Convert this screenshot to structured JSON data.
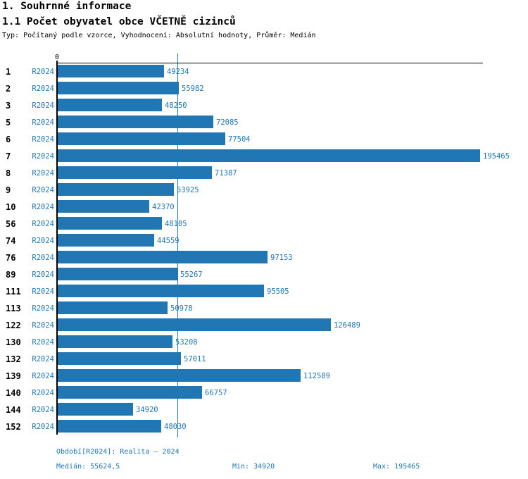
{
  "header": {
    "title": "1. Souhrnné informace",
    "subtitle": "1.1 Počet obyvatel obce VČETNĚ cizinců",
    "meta": "Typ: Počítaný podle vzorce, Vyhodnocení: Absolutní hodnoty, Průměr: Medián"
  },
  "chart_data": {
    "type": "bar",
    "orientation": "horizontal",
    "title": "1.1 Počet obyvatel obce VČETNĚ cizinců",
    "categories": [
      "1",
      "2",
      "3",
      "5",
      "6",
      "7",
      "8",
      "9",
      "10",
      "56",
      "74",
      "76",
      "89",
      "111",
      "113",
      "122",
      "130",
      "132",
      "139",
      "140",
      "144",
      "152"
    ],
    "series": [
      {
        "name": "R2024",
        "values": [
          49234,
          55982,
          48250,
          72085,
          77504,
          195465,
          71387,
          53925,
          42370,
          48105,
          44559,
          97153,
          55267,
          95505,
          50978,
          126489,
          53208,
          57011,
          112589,
          66757,
          34920,
          48030
        ]
      }
    ],
    "xlim": [
      0,
      197000
    ],
    "axis_zero_label": "0",
    "median": 55624.5,
    "min": 34920,
    "max": 195465,
    "bar_color": "#2077b4",
    "median_line_color": "#2077b4",
    "grid": false,
    "legend_position": "none"
  },
  "footer": {
    "period": "Období[R2024]: Realita – 2024",
    "median": "Medián: 55624,5",
    "min": "Min: 34920",
    "max": "Max: 195465"
  }
}
